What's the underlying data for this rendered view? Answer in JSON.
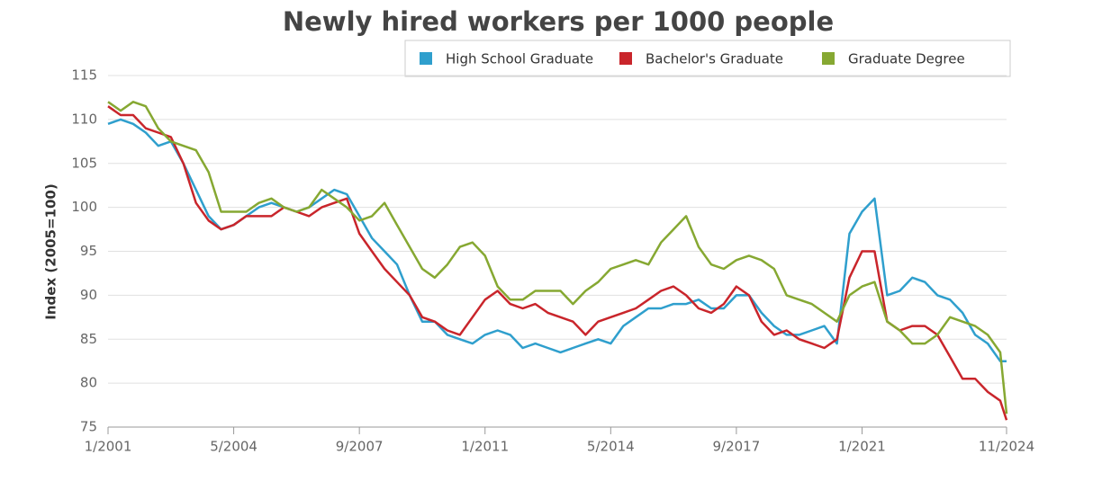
{
  "chart_data": {
    "type": "line",
    "title": "Newly hired workers per 1000 people",
    "y_label": "Index (2005=100)",
    "x": [
      "1/2001",
      "5/2001",
      "9/2001",
      "1/2002",
      "5/2002",
      "9/2002",
      "1/2003",
      "5/2003",
      "9/2003",
      "1/2004",
      "5/2004",
      "9/2004",
      "1/2005",
      "5/2005",
      "9/2005",
      "1/2006",
      "5/2006",
      "9/2006",
      "1/2007",
      "5/2007",
      "9/2007",
      "1/2008",
      "5/2008",
      "9/2008",
      "1/2009",
      "5/2009",
      "9/2009",
      "1/2010",
      "5/2010",
      "9/2010",
      "1/2011",
      "5/2011",
      "9/2011",
      "1/2012",
      "5/2012",
      "9/2012",
      "1/2013",
      "5/2013",
      "9/2013",
      "1/2014",
      "5/2014",
      "9/2014",
      "1/2015",
      "5/2015",
      "9/2015",
      "1/2016",
      "5/2016",
      "9/2016",
      "1/2017",
      "5/2017",
      "9/2017",
      "1/2018",
      "5/2018",
      "9/2018",
      "1/2019",
      "5/2019",
      "9/2019",
      "1/2020",
      "5/2020",
      "9/2020",
      "1/2021",
      "5/2021",
      "9/2021",
      "1/2022",
      "5/2022",
      "9/2022",
      "1/2023",
      "5/2023",
      "9/2023",
      "1/2024",
      "5/2024",
      "9/2024",
      "11/2024"
    ],
    "series": [
      {
        "name": "High School Graduate",
        "color": "#2f9fcd",
        "values": [
          109.5,
          110,
          109.5,
          108.5,
          107,
          107.5,
          105,
          102,
          99,
          97.5,
          98,
          99,
          100,
          100.5,
          100,
          99.5,
          100,
          101,
          102,
          101.5,
          99,
          96.5,
          95,
          93.5,
          90,
          87,
          87,
          85.5,
          85,
          84.5,
          85.5,
          86,
          85.5,
          84,
          84.5,
          84,
          83.5,
          84,
          84.5,
          85,
          84.5,
          86.5,
          87.5,
          88.5,
          88.5,
          89,
          89,
          89.5,
          88.5,
          88.5,
          90,
          90,
          88,
          86.5,
          85.5,
          85.5,
          86,
          86.5,
          84.5,
          97,
          99.5,
          101,
          90,
          90.5,
          92,
          91.5,
          90,
          89.5,
          88,
          85.5,
          84.5,
          82.5,
          82.5
        ]
      },
      {
        "name": "Bachelor's Graduate",
        "color": "#c9252b",
        "values": [
          111.5,
          110.5,
          110.5,
          109,
          108.5,
          108,
          105,
          100.5,
          98.5,
          97.5,
          98,
          99,
          99,
          99,
          100,
          99.5,
          99,
          100,
          100.5,
          101,
          97,
          95,
          93,
          91.5,
          90,
          87.5,
          87,
          86,
          85.5,
          87.5,
          89.5,
          90.5,
          89,
          88.5,
          89,
          88,
          87.5,
          87,
          85.5,
          87,
          87.5,
          88,
          88.5,
          89.5,
          90.5,
          91,
          90,
          88.5,
          88,
          89,
          91,
          90,
          87,
          85.5,
          86,
          85,
          84.5,
          84,
          85,
          92,
          95,
          95,
          87,
          86,
          86.5,
          86.5,
          85.5,
          83,
          80.5,
          80.5,
          79,
          78,
          75.8
        ]
      },
      {
        "name": "Graduate Degree",
        "color": "#86a832",
        "values": [
          112,
          111,
          112,
          111.5,
          109,
          107.5,
          107,
          106.5,
          104,
          99.5,
          99.5,
          99.5,
          100.5,
          101,
          100,
          99.5,
          100,
          102,
          101,
          100,
          98.5,
          99,
          100.5,
          98,
          95.5,
          93,
          92,
          93.5,
          95.5,
          96,
          94.5,
          91,
          89.5,
          89.5,
          90.5,
          90.5,
          90.5,
          89,
          90.5,
          91.5,
          93,
          93.5,
          94,
          93.5,
          96,
          97.5,
          99,
          95.5,
          93.5,
          93,
          94,
          94.5,
          94,
          93,
          90,
          89.5,
          89,
          88,
          87,
          90,
          91,
          91.5,
          87,
          86,
          84.5,
          84.5,
          85.5,
          87.5,
          87,
          86.5,
          85.5,
          83.5,
          76.5
        ]
      }
    ],
    "xlim": [
      "1/2001",
      "11/2024"
    ],
    "xticks": [
      "1/2001",
      "5/2004",
      "9/2007",
      "1/2011",
      "5/2014",
      "9/2017",
      "1/2021",
      "11/2024"
    ],
    "ylim": [
      75,
      115
    ],
    "yticks": [
      75,
      80,
      85,
      90,
      95,
      100,
      105,
      110,
      115
    ],
    "grid": true,
    "legend": "top-right"
  }
}
